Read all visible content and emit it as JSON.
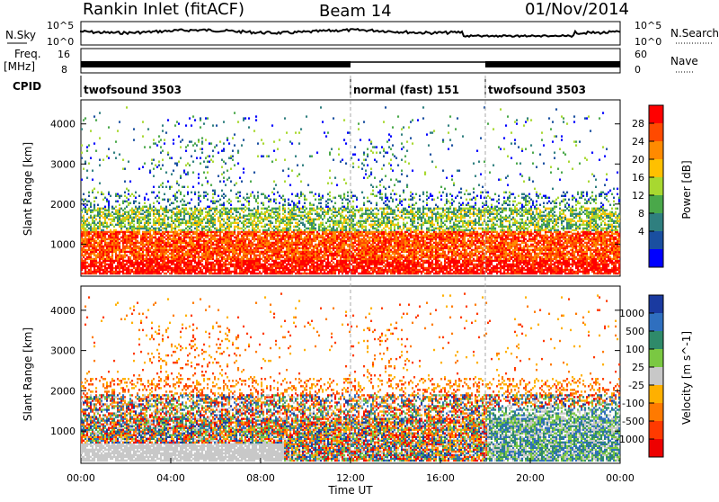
{
  "header": {
    "title": "Rankin Inlet (fitACF)",
    "beam": "Beam 14",
    "date": "01/Nov/2014"
  },
  "strips": {
    "nsky_label": "N.Sky",
    "nsky_ticks": [
      "10^5",
      "10^0"
    ],
    "nsearch_label": "N.Search",
    "nsearch_ticks": [
      "10^5",
      "10^0"
    ],
    "freq_label": "Freq.",
    "freq_unit": "[MHz]",
    "freq_ticks": [
      "16",
      "8"
    ],
    "nave_label": "Nave",
    "nave_ticks": [
      "60",
      "0"
    ],
    "cpid_label": "CPID"
  },
  "cpid_segments": [
    {
      "label": "twofsound 3503",
      "start_hr": 0,
      "end_hr": 12
    },
    {
      "label": "normal (fast) 151",
      "start_hr": 12,
      "end_hr": 18
    },
    {
      "label": "twofsound 3503",
      "start_hr": 18,
      "end_hr": 24
    }
  ],
  "x_axis": {
    "label": "Time UT",
    "ticks": [
      "00:00",
      "04:00",
      "08:00",
      "12:00",
      "16:00",
      "20:00",
      "00:00"
    ],
    "range_hr": [
      0,
      24
    ]
  },
  "panels": [
    {
      "name": "power",
      "ylabel": "Slant Range [km]",
      "yticks": [
        "4000",
        "3000",
        "2000",
        "1000"
      ],
      "cbar_label": "Power [dB]",
      "cbar_ticks": [
        "28",
        "24",
        "20",
        "16",
        "12",
        "8",
        "4"
      ],
      "cbar_colors": [
        "#ff0000",
        "#ff4a00",
        "#ff8a00",
        "#ffc000",
        "#a8d830",
        "#4aa84a",
        "#2f7f7f",
        "#1a4fa0",
        "#0000ff"
      ]
    },
    {
      "name": "velocity",
      "ylabel": "Slant Range [km]",
      "yticks": [
        "4000",
        "3000",
        "2000",
        "1000"
      ],
      "cbar_label": "Velocity [m s^-1]",
      "cbar_ticks": [
        "1000",
        "500",
        "100",
        "25",
        "-25",
        "-100",
        "-500",
        "-1000"
      ],
      "cbar_colors": [
        "#1a3aa0",
        "#2f6fbf",
        "#2f8a6a",
        "#7ac842",
        "#c8c8c8",
        "#ffb000",
        "#ff7a00",
        "#ff3a00",
        "#ee0000"
      ]
    }
  ],
  "chart_data": [
    {
      "type": "heatmap",
      "title": "Power",
      "x": "time UT (hours 0-24)",
      "y": "slant range (km)",
      "ylim": [
        200,
        4600
      ],
      "xlim": [
        0,
        24
      ],
      "bands": [
        {
          "time_hr": [
            0,
            24
          ],
          "range_km": [
            300,
            1300
          ],
          "value_db": 24
        },
        {
          "time_hr": [
            0,
            24
          ],
          "range_km": [
            1300,
            2200
          ],
          "value_db": 10
        },
        {
          "time_hr": [
            2,
            14
          ],
          "range_km": [
            2500,
            4000
          ],
          "value_db": 8
        }
      ]
    },
    {
      "type": "heatmap",
      "title": "Velocity",
      "x": "time UT (hours 0-24)",
      "y": "slant range (km)",
      "ylim": [
        200,
        4600
      ],
      "xlim": [
        0,
        24
      ],
      "bands": [
        {
          "time_hr": [
            0,
            24
          ],
          "range_km": [
            600,
            1900
          ],
          "value_ms": -100
        },
        {
          "time_hr": [
            2,
            8
          ],
          "range_km": [
            300,
            700
          ],
          "value_ms": 0
        },
        {
          "time_hr": [
            18,
            24
          ],
          "range_km": [
            800,
            1600
          ],
          "value_ms": 100
        }
      ]
    }
  ]
}
